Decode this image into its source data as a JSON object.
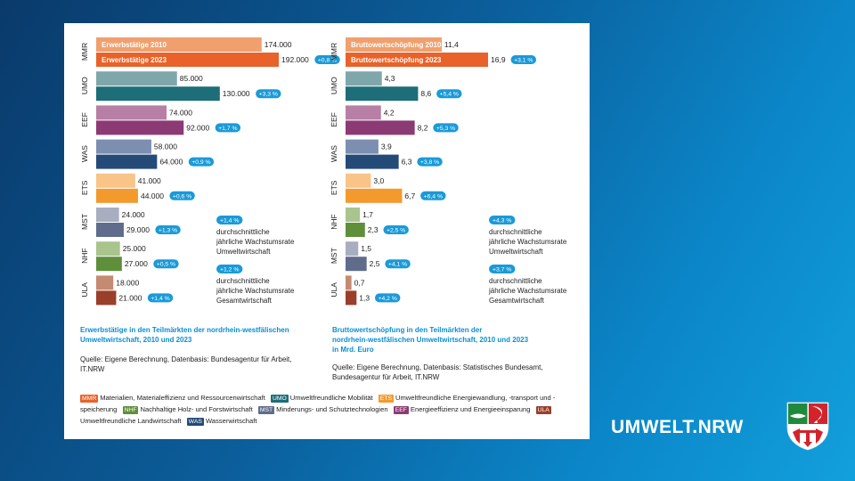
{
  "chart_data": [
    {
      "type": "bar",
      "orientation": "horizontal",
      "categories": [
        "MMR",
        "UMO",
        "EEF",
        "WAS",
        "ETS",
        "MST",
        "NHF",
        "ULA"
      ],
      "series": [
        {
          "name": "Erwerbstätige 2010",
          "values": [
            174000,
            85000,
            74000,
            58000,
            41000,
            24000,
            25000,
            18000
          ]
        },
        {
          "name": "Erwerbstätige 2023",
          "values": [
            192000,
            130000,
            92000,
            64000,
            44000,
            29000,
            27000,
            21000
          ]
        }
      ],
      "value_labels_2010": [
        "174.000",
        "85.000",
        "74.000",
        "58.000",
        "41.000",
        "24.000",
        "25.000",
        "18.000"
      ],
      "value_labels_2023": [
        "192.000",
        "130.000",
        "92.000",
        "64.000",
        "44.000",
        "29.000",
        "27.000",
        "21.000"
      ],
      "growth_badges": [
        "+0,8 %",
        "+3,3 %",
        "+1,7 %",
        "+0,9 %",
        "+0,6 %",
        "+1,3 %",
        "+0,5 %",
        "+1,4 %"
      ],
      "xlim": [
        0,
        200000
      ],
      "note_umwelt": {
        "badge": "+1,4 %",
        "lines": [
          "durchschnittliche",
          "jährliche Wachstumsrate",
          "Umweltwirtschaft"
        ]
      },
      "note_gesamt": {
        "badge": "+1,2 %",
        "lines": [
          "durchschnittliche",
          "jährliche Wachstumsrate",
          "Gesamtwirtschaft"
        ]
      },
      "caption_lines": [
        "Erwerbstätige in den Teilmärkten der nordrhein-westfälischen",
        "Umweltwirtschaft, 2010 und 2023"
      ],
      "source_lines": [
        "Quelle: Eigene Berechnung, Datenbasis: Bundesagentur für Arbeit,",
        "IT.NRW"
      ]
    },
    {
      "type": "bar",
      "orientation": "horizontal",
      "categories": [
        "MMR",
        "UMO",
        "EEF",
        "WAS",
        "ETS",
        "NHF",
        "MST",
        "ULA"
      ],
      "series": [
        {
          "name": "Bruttowertschöpfung 2010",
          "values": [
            11.4,
            4.3,
            4.2,
            3.9,
            3.0,
            1.7,
            1.5,
            0.7
          ]
        },
        {
          "name": "Bruttowertschöpfung 2023",
          "values": [
            16.9,
            8.6,
            8.2,
            6.3,
            6.7,
            2.3,
            2.5,
            1.3
          ]
        }
      ],
      "value_labels_2010": [
        "11,4",
        "4,3",
        "4,2",
        "3,9",
        "3,0",
        "1,7",
        "1,5",
        "0,7"
      ],
      "value_labels_2023": [
        "16,9",
        "8,6",
        "8,2",
        "6,3",
        "6,7",
        "2,3",
        "2,5",
        "1,3"
      ],
      "growth_badges": [
        "+3,1 %",
        "+5,4 %",
        "+5,3 %",
        "+3,8 %",
        "+6,4 %",
        "+2,5 %",
        "+4,1 %",
        "+4,2 %"
      ],
      "xlim": [
        0,
        17.6
      ],
      "note_umwelt": {
        "badge": "+4,3 %",
        "lines": [
          "durchschnittliche",
          "jährliche Wachstumsrate",
          "Umweltwirtschaft"
        ]
      },
      "note_gesamt": {
        "badge": "+3,7 %",
        "lines": [
          "durchschnittliche",
          "jährliche Wachstumsrate",
          "Gesamtwirtschaft"
        ]
      },
      "caption_lines": [
        "Bruttowertschöpfung in den Teilmärkten der",
        "nordrhein-westfälischen Umweltwirtschaft, 2010 und 2023",
        "in Mrd. Euro"
      ],
      "source_lines": [
        "Quelle: Eigene Berechnung, Datenbasis: Statistisches Bundesamt,",
        "Bundesagentur für Arbeit, IT.NRW"
      ]
    }
  ],
  "colors": {
    "MMR": [
      "#f0a06e",
      "#e8622a"
    ],
    "UMO": [
      "#7fa7ab",
      "#1d6e78"
    ],
    "EEF": [
      "#b87fa6",
      "#8c3a73"
    ],
    "WAS": [
      "#7d8fb0",
      "#244b78"
    ],
    "ETS": [
      "#f8c488",
      "#f39a2c"
    ],
    "MST": [
      "#a8aec0",
      "#5f6c8c"
    ],
    "NHF": [
      "#a9c48c",
      "#5f8f3a"
    ],
    "ULA": [
      "#c48a72",
      "#9a3f2a"
    ],
    "badge": "#1a9ad8"
  },
  "legend": [
    {
      "code": "MMR",
      "text": "Materialien, Materialeffizienz und Ressourcenwirtschaft"
    },
    {
      "code": "UMO",
      "text": "Umweltfreundliche Mobilität"
    },
    {
      "code": "ETS",
      "text": "Umweltfreundliche Energiewandlung, -transport und -speicherung"
    },
    {
      "code": "NHF",
      "text": "Nachhaltige Holz- und Forstwirtschaft"
    },
    {
      "code": "MST",
      "text": "Minderungs- und Schutztechnologien"
    },
    {
      "code": "EEF",
      "text": "Energieeffizienz und Energieeinsparung"
    },
    {
      "code": "ULA",
      "text": "Umweltfreundliche Landwirtschaft"
    },
    {
      "code": "WAS",
      "text": "Wasserwirtschaft"
    }
  ],
  "brand": "UMWELT.NRW",
  "crest_icon": "nrw-coat-of-arms-icon"
}
